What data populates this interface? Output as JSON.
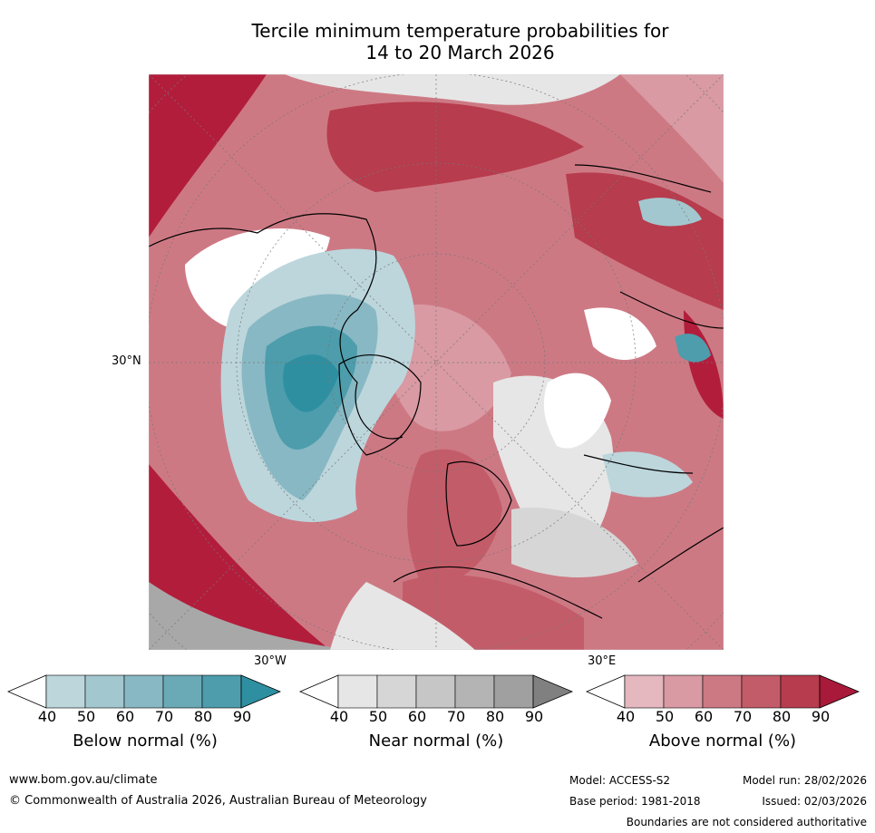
{
  "title": {
    "line1": "Tercile minimum temperature probabilities for",
    "line2": "14 to 20 March 2026"
  },
  "map": {
    "lat_labels": [
      "30°N"
    ],
    "lon_labels": [
      "30°W",
      "30°E"
    ]
  },
  "legend": {
    "ticks": [
      "40",
      "50",
      "60",
      "70",
      "80",
      "90"
    ],
    "below": {
      "label": "Below normal (%)",
      "colors": [
        "#ffffff",
        "#bcd6dc",
        "#a3c7ce",
        "#88b8c3",
        "#6aaab7",
        "#4d9dac",
        "#2e8fa1"
      ]
    },
    "near": {
      "label": "Near normal (%)",
      "colors": [
        "#ffffff",
        "#e6e6e6",
        "#d6d6d6",
        "#c6c6c6",
        "#b4b4b4",
        "#a0a0a0",
        "#808080"
      ]
    },
    "above": {
      "label": "Above normal (%)",
      "colors": [
        "#ffffff",
        "#e4b8be",
        "#d99aa3",
        "#cd7984",
        "#c35c69",
        "#b73c4d",
        "#a8193a"
      ]
    }
  },
  "footer": {
    "url": "www.bom.gov.au/climate",
    "copyright": "© Commonwealth of Australia 2026, Australian Bureau of Meteorology",
    "model": "Model: ACCESS-S2",
    "model_run": "Model run: 28/02/2026",
    "base_period": "Base period: 1981-2018",
    "issued": "Issued: 02/03/2026",
    "disclaimer": "Boundaries are not considered authoritative"
  }
}
